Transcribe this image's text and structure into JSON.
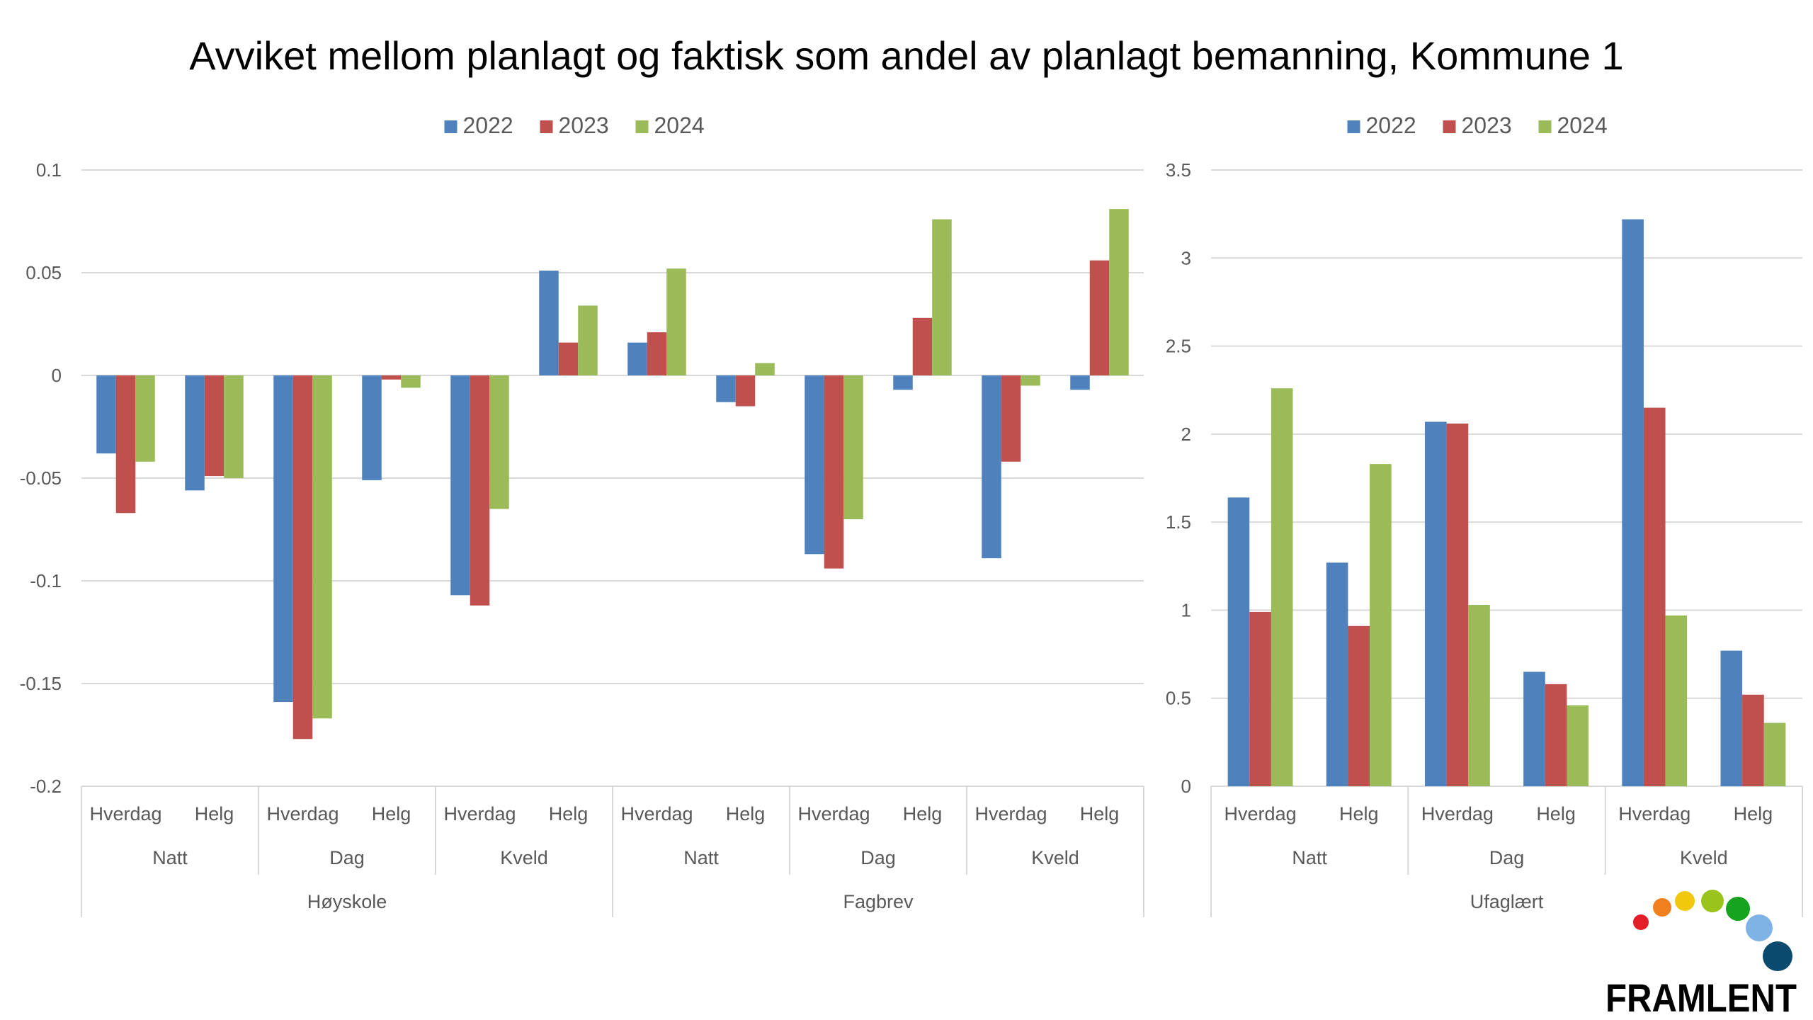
{
  "title": "Avviket mellom planlagt og faktisk som andel av planlagt bemanning, Kommune 1",
  "legend": [
    "2022",
    "2023",
    "2024"
  ],
  "colors": {
    "2022": "#4f81bd",
    "2023": "#c0504d",
    "2024": "#9bbb59",
    "grid": "#d9d9d9",
    "axis_text": "#595959"
  },
  "logo": {
    "text": "FRAMLENT",
    "dots": [
      "#e41e26",
      "#f07f1e",
      "#f2c80f",
      "#9ac31c",
      "#16a31d",
      "#7fb3e6",
      "#0a4a6e"
    ]
  },
  "chart_data": [
    {
      "type": "bar",
      "ylim": [
        -0.2,
        0.1
      ],
      "yticks": [
        "0.1",
        "0.05",
        "0",
        "-0.05",
        "-0.1",
        "-0.15",
        "-0.2"
      ],
      "ytick_values": [
        0.1,
        0.05,
        0,
        -0.05,
        -0.1,
        -0.15,
        -0.2
      ],
      "categories": [
        "Hverdag",
        "Helg",
        "Hverdag",
        "Helg",
        "Hverdag",
        "Helg",
        "Hverdag",
        "Helg",
        "Hverdag",
        "Helg",
        "Hverdag",
        "Helg"
      ],
      "level2": [
        "Natt",
        "Dag",
        "Kveld",
        "Natt",
        "Dag",
        "Kveld"
      ],
      "level3": [
        "Høyskole",
        "Fagbrev"
      ],
      "series": [
        {
          "name": "2022",
          "values": [
            -0.038,
            -0.056,
            -0.159,
            -0.051,
            -0.107,
            0.051,
            0.016,
            -0.013,
            -0.087,
            -0.007,
            -0.089,
            -0.007
          ]
        },
        {
          "name": "2023",
          "values": [
            -0.067,
            -0.049,
            -0.177,
            -0.002,
            -0.112,
            0.016,
            0.021,
            -0.015,
            -0.094,
            0.028,
            -0.042,
            0.056
          ]
        },
        {
          "name": "2024",
          "values": [
            -0.042,
            -0.05,
            -0.167,
            -0.006,
            -0.065,
            0.034,
            0.052,
            0.006,
            -0.07,
            0.076,
            -0.005,
            0.081
          ]
        }
      ]
    },
    {
      "type": "bar",
      "ylim": [
        0,
        3.5
      ],
      "yticks": [
        "3.5",
        "3",
        "2.5",
        "2",
        "1.5",
        "1",
        "0.5",
        "0"
      ],
      "ytick_values": [
        3.5,
        3,
        2.5,
        2,
        1.5,
        1,
        0.5,
        0
      ],
      "categories": [
        "Hverdag",
        "Helg",
        "Hverdag",
        "Helg",
        "Hverdag",
        "Helg"
      ],
      "level2": [
        "Natt",
        "Dag",
        "Kveld"
      ],
      "level3": [
        "Ufaglært"
      ],
      "series": [
        {
          "name": "2022",
          "values": [
            1.64,
            1.27,
            2.07,
            0.65,
            3.22,
            0.77
          ]
        },
        {
          "name": "2023",
          "values": [
            0.99,
            0.91,
            2.06,
            0.58,
            2.15,
            0.52
          ]
        },
        {
          "name": "2024",
          "values": [
            2.26,
            1.83,
            1.03,
            0.46,
            0.97,
            0.36
          ]
        }
      ]
    }
  ]
}
